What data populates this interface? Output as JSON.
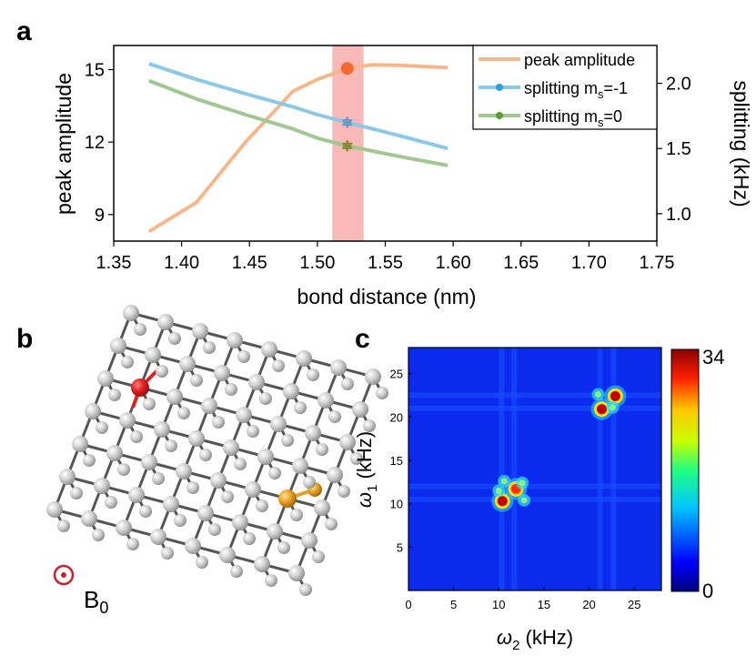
{
  "panels": {
    "a": "a",
    "b": "b",
    "c": "c"
  },
  "legend": {
    "peak": "peak amplitude",
    "split_m1_pre": "splitting m",
    "split_m1_sub": "s",
    "split_m1_post": "=-1",
    "split_m0_pre": "splitting m",
    "split_m0_sub": "s",
    "split_m0_post": "=0"
  },
  "colors": {
    "peak": "#f5b88c",
    "split_m1": "#8cc8e8",
    "split_m0": "#a0c890",
    "highlight": "#f7a8a8",
    "peak_marker": "#f26a2e",
    "m1_marker": "#6a9cc4",
    "m0_marker": "#8a8a3a",
    "carbon": "#c8c8c8",
    "red_atom": "#e02020",
    "gold_atom": "#e8a020",
    "b0": "#d02030"
  },
  "chart_data": [
    {
      "type": "line",
      "xlabel": "bond distance (nm)",
      "ylabel": "peak amplitude",
      "y2label": "splitting (kHz)",
      "xlim": [
        1.35,
        1.75
      ],
      "ylim": [
        7.9,
        16.0
      ],
      "y2lim": [
        0.79,
        2.29
      ],
      "xticks": [
        "1.35",
        "1.40",
        "1.45",
        "1.50",
        "1.55",
        "1.60",
        "1.65",
        "1.70",
        "1.75"
      ],
      "yticks": [
        "9",
        "12",
        "15"
      ],
      "y2ticks": [
        "1.0",
        "1.5",
        "2.0"
      ],
      "highlight_band": [
        1.511,
        1.534
      ],
      "legend_position": "top-right",
      "series": [
        {
          "name": "peak amplitude",
          "axis": "left",
          "x": [
            1.376,
            1.411,
            1.447,
            1.482,
            1.5,
            1.522,
            1.54,
            1.56,
            1.596
          ],
          "y": [
            8.3,
            9.5,
            12.0,
            14.1,
            14.6,
            15.05,
            15.2,
            15.18,
            15.08
          ],
          "marker": {
            "x": 1.522,
            "y": 15.05
          }
        },
        {
          "name": "splitting ms=-1",
          "axis": "right",
          "x": [
            1.376,
            1.411,
            1.447,
            1.482,
            1.5,
            1.522,
            1.56,
            1.596
          ],
          "y": [
            2.15,
            2.03,
            1.92,
            1.82,
            1.76,
            1.7,
            1.6,
            1.5
          ],
          "marker": {
            "x": 1.522,
            "y": 1.7
          }
        },
        {
          "name": "splitting ms=0",
          "axis": "right",
          "x": [
            1.376,
            1.411,
            1.447,
            1.482,
            1.5,
            1.522,
            1.56,
            1.596
          ],
          "y": [
            2.02,
            1.88,
            1.76,
            1.65,
            1.58,
            1.52,
            1.44,
            1.37
          ],
          "marker": {
            "x": 1.522,
            "y": 1.52
          }
        }
      ]
    },
    {
      "type": "heatmap",
      "xlabel_sym": "ω",
      "xlabel_sub": "2",
      "xlabel_unit": " (kHz)",
      "ylabel_sym": "ω",
      "ylabel_sub": "1",
      "ylabel_unit": " (kHz)",
      "xlim": [
        0,
        28
      ],
      "ylim": [
        0,
        28
      ],
      "xticks": [
        "0",
        "5",
        "10",
        "15",
        "20",
        "25"
      ],
      "yticks": [
        "5",
        "10",
        "15",
        "20",
        "25"
      ],
      "colorbar_min": "0",
      "colorbar_max": "34",
      "peaks": [
        {
          "x": 10.4,
          "y": 10.3,
          "v": 34
        },
        {
          "x": 11.9,
          "y": 11.7,
          "v": 30
        },
        {
          "x": 21.4,
          "y": 20.9,
          "v": 34
        },
        {
          "x": 22.9,
          "y": 22.4,
          "v": 34
        }
      ]
    }
  ],
  "structure": {
    "b0_label": "B",
    "b0_sub": "0"
  }
}
